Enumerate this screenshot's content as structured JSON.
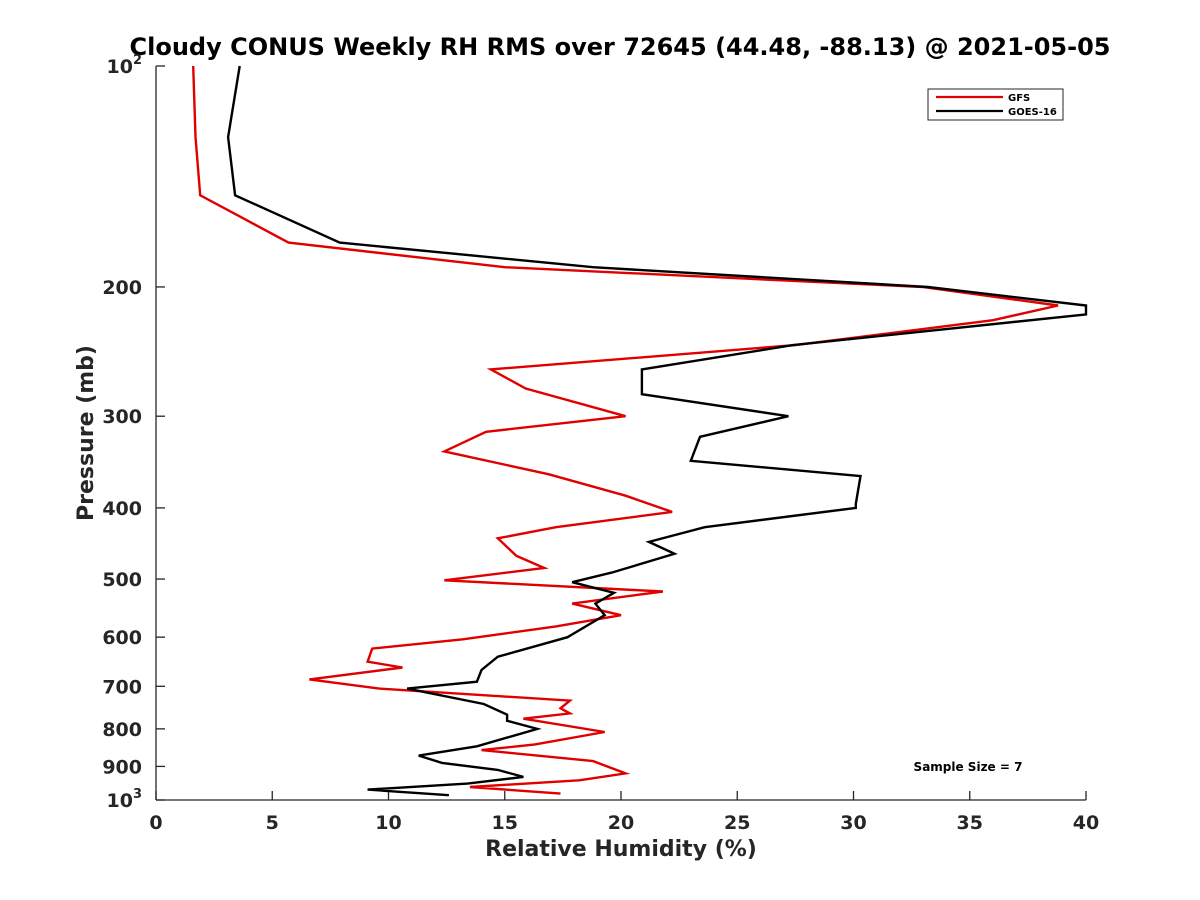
{
  "chart_data": {
    "type": "line",
    "title": "Cloudy CONUS Weekly RH RMS over 72645 (44.48, -88.13) @ 2021-05-05",
    "xlabel": "Relative Humidity (%)",
    "ylabel": "Pressure (mb)",
    "xlim": [
      0,
      40
    ],
    "ylim": [
      100,
      1000
    ],
    "y_scale": "log",
    "y_reversed": true,
    "grid": false,
    "legend_position": "top-right",
    "annotation": "Sample Size = 7",
    "x_ticks": [
      "0",
      "5",
      "10",
      "15",
      "20",
      "25",
      "30",
      "35",
      "40"
    ],
    "y_ticks": [
      {
        "value": 100,
        "label": "10",
        "sup": "2"
      },
      {
        "value": 200,
        "label": "200",
        "sup": ""
      },
      {
        "value": 300,
        "label": "300",
        "sup": ""
      },
      {
        "value": 400,
        "label": "400",
        "sup": ""
      },
      {
        "value": 500,
        "label": "500",
        "sup": ""
      },
      {
        "value": 600,
        "label": "600",
        "sup": ""
      },
      {
        "value": 700,
        "label": "700",
        "sup": ""
      },
      {
        "value": 800,
        "label": "800",
        "sup": ""
      },
      {
        "value": 900,
        "label": "900",
        "sup": ""
      },
      {
        "value": 1000,
        "label": "10",
        "sup": "3"
      }
    ],
    "series": [
      {
        "name": "GFS",
        "color": "#e00000",
        "points": [
          [
            1.6,
            100
          ],
          [
            1.7,
            125
          ],
          [
            1.9,
            150
          ],
          [
            5.7,
            174
          ],
          [
            15.0,
            188
          ],
          [
            33.0,
            200
          ],
          [
            38.8,
            212
          ],
          [
            36.0,
            222
          ],
          [
            27.5,
            240
          ],
          [
            14.4,
            259
          ],
          [
            15.9,
            275
          ],
          [
            20.2,
            300
          ],
          [
            14.2,
            315
          ],
          [
            12.4,
            335
          ],
          [
            16.9,
            360
          ],
          [
            20.2,
            385
          ],
          [
            22.2,
            405
          ],
          [
            17.2,
            425
          ],
          [
            14.7,
            440
          ],
          [
            15.5,
            465
          ],
          [
            16.7,
            483
          ],
          [
            12.4,
            502
          ],
          [
            21.8,
            520
          ],
          [
            17.9,
            540
          ],
          [
            20.0,
            560
          ],
          [
            17.2,
            580
          ],
          [
            13.2,
            604
          ],
          [
            9.3,
            622
          ],
          [
            9.1,
            648
          ],
          [
            10.6,
            660
          ],
          [
            6.6,
            685
          ],
          [
            9.6,
            705
          ],
          [
            17.8,
            732
          ],
          [
            17.4,
            750
          ],
          [
            17.8,
            762
          ],
          [
            15.8,
            775
          ],
          [
            19.3,
            808
          ],
          [
            16.3,
            840
          ],
          [
            14.0,
            855
          ],
          [
            18.8,
            885
          ],
          [
            20.2,
            920
          ],
          [
            18.2,
            940
          ],
          [
            13.5,
            960
          ],
          [
            17.4,
            980
          ]
        ]
      },
      {
        "name": "GOES-16",
        "color": "#000000",
        "points": [
          [
            3.6,
            100
          ],
          [
            3.1,
            125
          ],
          [
            3.4,
            150
          ],
          [
            7.9,
            174
          ],
          [
            18.8,
            188
          ],
          [
            33.2,
            200
          ],
          [
            40.0,
            212
          ],
          [
            40.0,
            218
          ],
          [
            27.4,
            240
          ],
          [
            20.9,
            259
          ],
          [
            20.9,
            280
          ],
          [
            27.2,
            300
          ],
          [
            23.4,
            320
          ],
          [
            23.0,
            345
          ],
          [
            30.3,
            362
          ],
          [
            30.1,
            395
          ],
          [
            30.1,
            400
          ],
          [
            23.6,
            425
          ],
          [
            21.2,
            445
          ],
          [
            22.3,
            462
          ],
          [
            19.6,
            490
          ],
          [
            17.9,
            505
          ],
          [
            19.7,
            522
          ],
          [
            18.9,
            540
          ],
          [
            19.3,
            560
          ],
          [
            17.7,
            600
          ],
          [
            14.7,
            638
          ],
          [
            14.0,
            665
          ],
          [
            13.8,
            690
          ],
          [
            10.8,
            705
          ],
          [
            14.1,
            740
          ],
          [
            15.1,
            765
          ],
          [
            15.1,
            780
          ],
          [
            16.4,
            800
          ],
          [
            13.8,
            845
          ],
          [
            11.3,
            870
          ],
          [
            12.3,
            890
          ],
          [
            14.7,
            910
          ],
          [
            15.8,
            930
          ],
          [
            13.4,
            950
          ],
          [
            9.1,
            968
          ],
          [
            12.6,
            985
          ]
        ]
      }
    ]
  }
}
